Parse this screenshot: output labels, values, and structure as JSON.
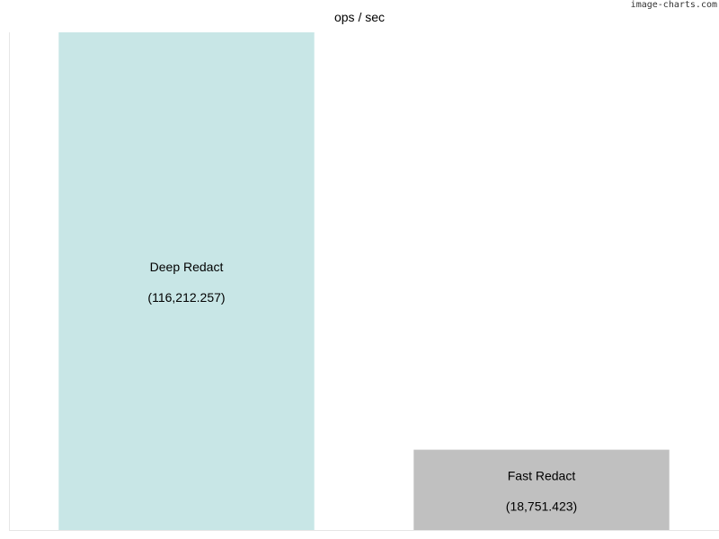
{
  "watermark": "image-charts.com",
  "chart_data": {
    "type": "bar",
    "title": "ops / sec",
    "xlabel": "",
    "ylabel": "",
    "categories": [
      "Deep Redact",
      "Fast Redact"
    ],
    "values": [
      116212257,
      18751423
    ],
    "data_labels": [
      "(116,212.257)",
      "(18,751.423)"
    ],
    "colors": [
      "#c8e6e6",
      "#c0c0c0"
    ],
    "ylim": [
      0,
      116212257
    ],
    "grid": false,
    "legend": "none"
  }
}
